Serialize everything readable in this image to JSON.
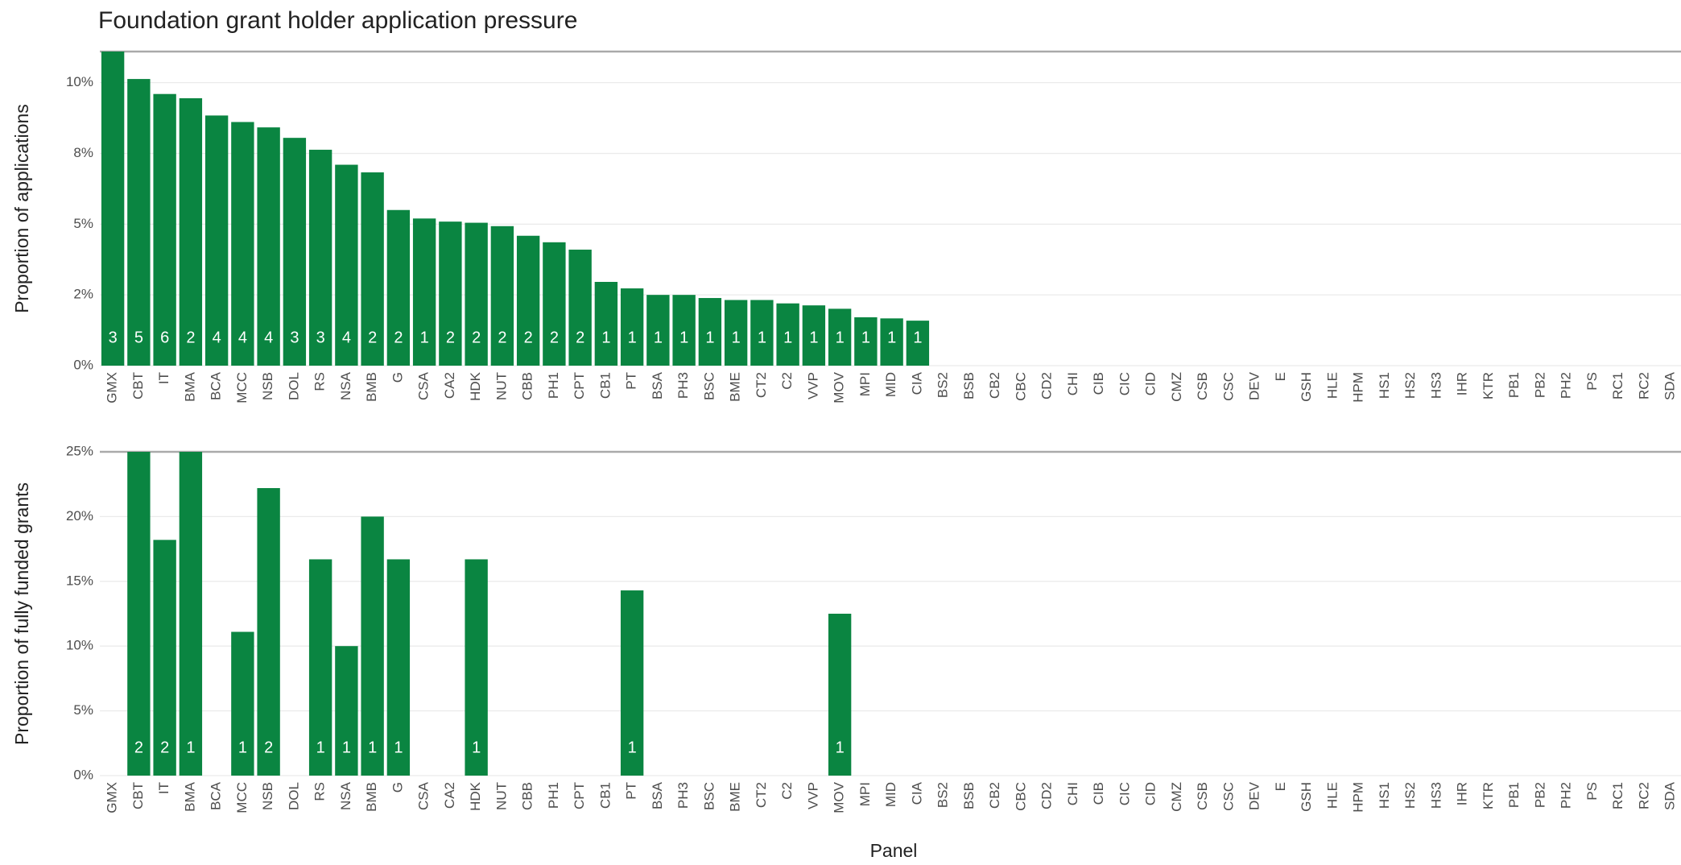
{
  "chart_data": [
    {
      "type": "bar",
      "title": "Foundation grant holder application pressure",
      "ylabel": "Proportion of applications",
      "color": "#0a8541",
      "categories": [
        "GMX",
        "CBT",
        "IT",
        "BMA",
        "BCA",
        "MCC",
        "NSB",
        "DOL",
        "RS",
        "NSA",
        "BMB",
        "G",
        "CSA",
        "CA2",
        "HDK",
        "NUT",
        "CBB",
        "PH1",
        "CPT",
        "CB1",
        "PT",
        "BSA",
        "PH3",
        "BSC",
        "BME",
        "CT2",
        "C2",
        "VVP",
        "MOV",
        "MPI",
        "MID",
        "CIA",
        "BS2",
        "BSB",
        "CB2",
        "CBC",
        "CD2",
        "CHI",
        "CIB",
        "CIC",
        "CID",
        "CMZ",
        "CSB",
        "CSC",
        "DEV",
        "E",
        "GSH",
        "HLE",
        "HPM",
        "HS1",
        "HS2",
        "HS3",
        "IHR",
        "KTR",
        "PB1",
        "PB2",
        "PH2",
        "PS",
        "RC1",
        "RC2",
        "SDA"
      ],
      "values": [
        11.1,
        10.13,
        9.6,
        9.45,
        8.84,
        8.61,
        8.42,
        8.05,
        7.63,
        7.1,
        6.83,
        5.5,
        5.2,
        5.09,
        5.05,
        4.93,
        4.59,
        4.36,
        4.1,
        2.96,
        2.73,
        2.5,
        2.5,
        2.39,
        2.32,
        2.32,
        2.2,
        2.13,
        2.01,
        1.71,
        1.67,
        1.59,
        0,
        0,
        0,
        0,
        0,
        0,
        0,
        0,
        0,
        0,
        0,
        0,
        0,
        0,
        0,
        0,
        0,
        0,
        0,
        0,
        0,
        0,
        0,
        0,
        0,
        0,
        0,
        0,
        0
      ],
      "counts": [
        3,
        5,
        6,
        2,
        4,
        4,
        4,
        3,
        3,
        4,
        2,
        2,
        1,
        2,
        2,
        2,
        2,
        2,
        2,
        1,
        1,
        1,
        1,
        1,
        1,
        1,
        1,
        1,
        1,
        1,
        1,
        1,
        null,
        null,
        null,
        null,
        null,
        null,
        null,
        null,
        null,
        null,
        null,
        null,
        null,
        null,
        null,
        null,
        null,
        null,
        null,
        null,
        null,
        null,
        null,
        null,
        null,
        null,
        null,
        null,
        null
      ],
      "ylim": [
        0,
        11.1
      ],
      "yticks": [
        {
          "value": 0,
          "label": "0%"
        },
        {
          "value": 2.5,
          "label": "2%"
        },
        {
          "value": 5,
          "label": "5%"
        },
        {
          "value": 7.5,
          "label": "8%"
        },
        {
          "value": 10,
          "label": "10%"
        }
      ],
      "grid": true
    },
    {
      "type": "bar",
      "ylabel": "Proportion of fully funded grants",
      "xlabel": "Panel",
      "color": "#0a8541",
      "categories": [
        "GMX",
        "CBT",
        "IT",
        "BMA",
        "BCA",
        "MCC",
        "NSB",
        "DOL",
        "RS",
        "NSA",
        "BMB",
        "G",
        "CSA",
        "CA2",
        "HDK",
        "NUT",
        "CBB",
        "PH1",
        "CPT",
        "CB1",
        "PT",
        "BSA",
        "PH3",
        "BSC",
        "BME",
        "CT2",
        "C2",
        "VVP",
        "MOV",
        "MPI",
        "MID",
        "CIA",
        "BS2",
        "BSB",
        "CB2",
        "CBC",
        "CD2",
        "CHI",
        "CIB",
        "CIC",
        "CID",
        "CMZ",
        "CSB",
        "CSC",
        "DEV",
        "E",
        "GSH",
        "HLE",
        "HPM",
        "HS1",
        "HS2",
        "HS3",
        "IHR",
        "KTR",
        "PB1",
        "PB2",
        "PH2",
        "PS",
        "RC1",
        "RC2",
        "SDA"
      ],
      "values": [
        0,
        25,
        18.2,
        25,
        0,
        11.1,
        22.2,
        0,
        16.7,
        10,
        20,
        16.7,
        0,
        0,
        16.7,
        0,
        0,
        0,
        0,
        0,
        14.3,
        0,
        0,
        0,
        0,
        0,
        0,
        0,
        12.5,
        0,
        0,
        0,
        0,
        0,
        0,
        0,
        0,
        0,
        0,
        0,
        0,
        0,
        0,
        0,
        0,
        0,
        0,
        0,
        0,
        0,
        0,
        0,
        0,
        0,
        0,
        0,
        0,
        0,
        0,
        0,
        0
      ],
      "counts": [
        null,
        2,
        2,
        1,
        null,
        1,
        2,
        null,
        1,
        1,
        1,
        1,
        null,
        null,
        1,
        null,
        null,
        null,
        null,
        null,
        1,
        null,
        null,
        null,
        null,
        null,
        null,
        null,
        1,
        null,
        null,
        null,
        null,
        null,
        null,
        null,
        null,
        null,
        null,
        null,
        null,
        null,
        null,
        null,
        null,
        null,
        null,
        null,
        null,
        null,
        null,
        null,
        null,
        null,
        null,
        null,
        null,
        null,
        null,
        null,
        null
      ],
      "ylim": [
        0,
        25
      ],
      "yticks": [
        {
          "value": 0,
          "label": "0%"
        },
        {
          "value": 5,
          "label": "5%"
        },
        {
          "value": 10,
          "label": "10%"
        },
        {
          "value": 15,
          "label": "15%"
        },
        {
          "value": 20,
          "label": "20%"
        },
        {
          "value": 25,
          "label": "25%"
        }
      ],
      "grid": true
    }
  ]
}
